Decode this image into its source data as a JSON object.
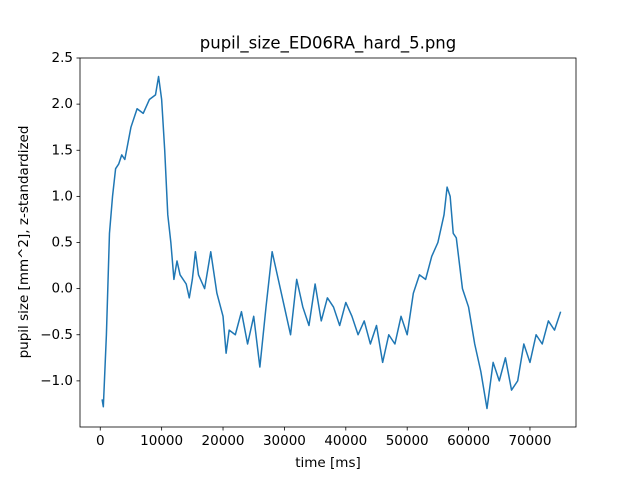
{
  "chart_data": {
    "type": "line",
    "title": "pupil_size_ED06RA_hard_5.png",
    "xlabel": "time [ms]",
    "ylabel": "pupil size [mm^2], z-standardized",
    "x": [
      300,
      500,
      1000,
      1500,
      2000,
      2500,
      3000,
      3500,
      4000,
      5000,
      6000,
      7000,
      8000,
      9000,
      9500,
      10000,
      10500,
      11000,
      11500,
      12000,
      12500,
      13000,
      14000,
      14500,
      15000,
      15500,
      16000,
      17000,
      18000,
      19000,
      20000,
      20500,
      21000,
      22000,
      23000,
      24000,
      25000,
      26000,
      27000,
      28000,
      29000,
      30000,
      31000,
      32000,
      33000,
      34000,
      35000,
      36000,
      37000,
      38000,
      39000,
      40000,
      41000,
      42000,
      43000,
      44000,
      45000,
      46000,
      47000,
      48000,
      49000,
      50000,
      51000,
      52000,
      53000,
      54000,
      55000,
      56000,
      56500,
      57000,
      57500,
      58000,
      59000,
      60000,
      61000,
      62000,
      63000,
      64000,
      65000,
      66000,
      67000,
      68000,
      69000,
      70000,
      71000,
      72000,
      73000,
      74000,
      75000
    ],
    "series": [
      {
        "name": "pupil size",
        "color": "#1f77b4",
        "values": [
          -1.2,
          -1.28,
          -0.5,
          0.6,
          1.0,
          1.3,
          1.35,
          1.45,
          1.4,
          1.75,
          1.95,
          1.9,
          2.05,
          2.1,
          2.3,
          2.05,
          1.5,
          0.8,
          0.5,
          0.1,
          0.3,
          0.15,
          0.05,
          -0.1,
          0.1,
          0.4,
          0.15,
          0.0,
          0.4,
          -0.05,
          -0.3,
          -0.7,
          -0.45,
          -0.5,
          -0.25,
          -0.6,
          -0.3,
          -0.85,
          -0.2,
          0.4,
          0.1,
          -0.2,
          -0.5,
          0.1,
          -0.2,
          -0.4,
          0.05,
          -0.35,
          -0.1,
          -0.2,
          -0.4,
          -0.15,
          -0.3,
          -0.5,
          -0.35,
          -0.6,
          -0.4,
          -0.8,
          -0.5,
          -0.6,
          -0.3,
          -0.5,
          -0.05,
          0.15,
          0.1,
          0.35,
          0.5,
          0.8,
          1.1,
          1.0,
          0.6,
          0.55,
          0.0,
          -0.2,
          -0.6,
          -0.9,
          -1.3,
          -0.8,
          -1.0,
          -0.75,
          -1.1,
          -1.0,
          -0.6,
          -0.8,
          -0.5,
          -0.6,
          -0.35,
          -0.45,
          -0.25
        ]
      }
    ],
    "xlim": [
      -3300,
      77500
    ],
    "ylim": [
      -1.5,
      2.5
    ],
    "xticks": [
      0,
      10000,
      20000,
      30000,
      40000,
      50000,
      60000,
      70000
    ],
    "yticks": [
      {
        "value": -1.0,
        "label": "−1.0"
      },
      {
        "value": -0.5,
        "label": "−0.5"
      },
      {
        "value": 0.0,
        "label": "0.0"
      },
      0.5,
      {
        "value": 1.0,
        "label": "1.0"
      },
      1.5,
      {
        "value": 2.0,
        "label": "2.0"
      },
      2.5
    ],
    "grid": false
  }
}
